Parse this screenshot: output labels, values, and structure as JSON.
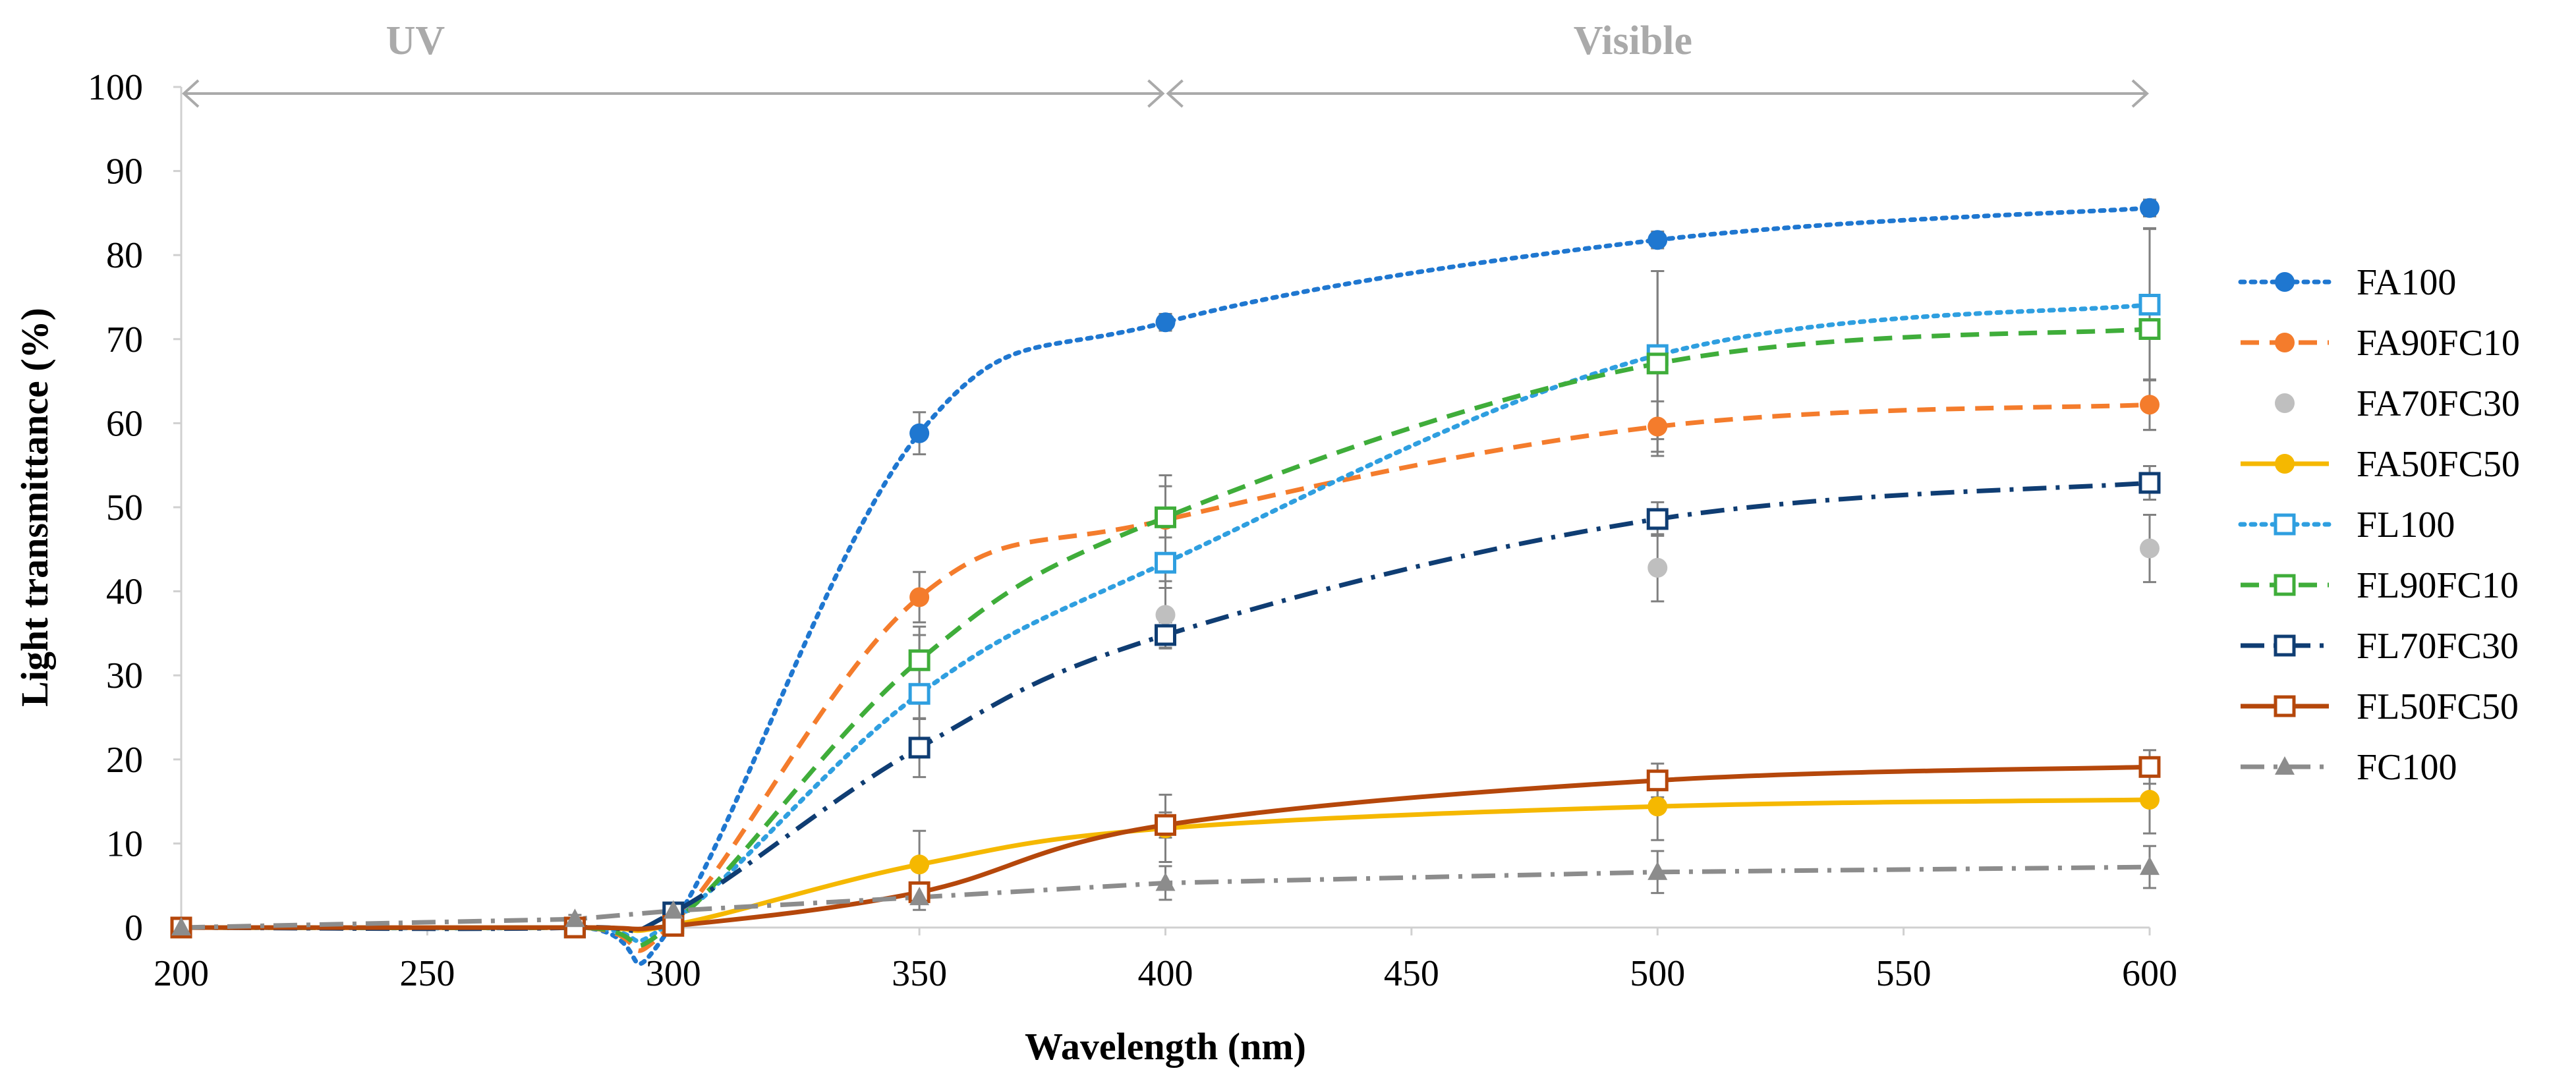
{
  "chart_data": {
    "type": "line",
    "title": "",
    "xlabel": "Wavelength (nm)",
    "ylabel": "Light transmittance (%)",
    "xlim": [
      200,
      600
    ],
    "ylim": [
      0,
      100
    ],
    "xticks": [
      "200",
      "250",
      "300",
      "350",
      "400",
      "450",
      "500",
      "550",
      "600"
    ],
    "yticks": [
      "0",
      "10",
      "20",
      "30",
      "40",
      "50",
      "60",
      "70",
      "80",
      "90",
      "100"
    ],
    "grid": false,
    "legend_position": "right",
    "regions": [
      {
        "label": "UV",
        "from": 200,
        "to": 400
      },
      {
        "label": "Visible",
        "from": 400,
        "to": 600
      }
    ],
    "series": [
      {
        "name": "FA100",
        "color": "#1f77d0",
        "dash": "dotted",
        "marker": "filled-circle",
        "smooth": true,
        "x": [
          200,
          280,
          300,
          350,
          400,
          500,
          600
        ],
        "y": [
          0,
          0,
          0.5,
          58.8,
          72,
          81.8,
          85.6
        ],
        "err": [
          0,
          0,
          0,
          2.5,
          1,
          1,
          1
        ]
      },
      {
        "name": "FA90FC10",
        "color": "#f47c2c",
        "dash": "dashed",
        "marker": "filled-circle",
        "smooth": true,
        "x": [
          200,
          280,
          300,
          350,
          400,
          500,
          600
        ],
        "y": [
          0,
          0,
          0.5,
          39.3,
          48.5,
          59.6,
          62.2
        ],
        "err": [
          0,
          0,
          0,
          3,
          4,
          3,
          3
        ]
      },
      {
        "name": "FA70FC30",
        "color": "#bfbfbf",
        "dash": "none",
        "marker": "filled-circle",
        "smooth": false,
        "x": [
          200,
          280,
          300,
          350,
          400,
          500,
          600
        ],
        "y": [
          0,
          0,
          0.5,
          31.8,
          37.2,
          42.8,
          45.1
        ],
        "err": [
          0,
          0,
          0,
          3,
          4,
          4,
          4
        ]
      },
      {
        "name": "FA50FC50",
        "color": "#f5b800",
        "dash": "solid",
        "marker": "filled-circle",
        "smooth": true,
        "x": [
          200,
          280,
          300,
          350,
          400,
          500,
          600
        ],
        "y": [
          0,
          0,
          0.3,
          7.5,
          11.8,
          14.4,
          15.2
        ],
        "err": [
          0,
          0,
          0,
          4,
          4,
          4,
          4
        ]
      },
      {
        "name": "FL100",
        "color": "#2f9fe0",
        "dash": "dotted",
        "marker": "open-square",
        "smooth": true,
        "x": [
          200,
          280,
          300,
          350,
          400,
          500,
          600
        ],
        "y": [
          0,
          0,
          0.8,
          27.8,
          43.4,
          68.1,
          74.1
        ],
        "err": [
          0,
          0,
          0,
          3,
          3,
          10,
          9
        ]
      },
      {
        "name": "FL90FC10",
        "color": "#3fad3a",
        "dash": "dashed",
        "marker": "open-square",
        "smooth": true,
        "x": [
          200,
          280,
          300,
          350,
          400,
          500,
          600
        ],
        "y": [
          0,
          0,
          0.5,
          31.8,
          48.8,
          67.1,
          71.2
        ],
        "err": [
          0,
          0,
          0,
          4,
          5,
          11,
          12
        ]
      },
      {
        "name": "FL70FC30",
        "color": "#0f3d73",
        "dash": "dash-dot",
        "marker": "open-square",
        "smooth": true,
        "x": [
          200,
          280,
          300,
          350,
          400,
          500,
          600
        ],
        "y": [
          0,
          0,
          1.8,
          21.4,
          34.8,
          48.6,
          52.9
        ],
        "err": [
          0,
          0,
          0,
          3.5,
          1.5,
          2,
          2
        ]
      },
      {
        "name": "FL50FC50",
        "color": "#b5470b",
        "dash": "solid",
        "marker": "open-square",
        "smooth": true,
        "x": [
          200,
          280,
          300,
          350,
          400,
          500,
          600
        ],
        "y": [
          0,
          0,
          0.2,
          4.2,
          12.2,
          17.5,
          19.1
        ],
        "err": [
          0,
          0,
          0,
          1,
          1.5,
          2,
          2
        ]
      },
      {
        "name": "FC100",
        "color": "#8c8c8c",
        "dash": "dash-dot",
        "marker": "filled-triangle",
        "smooth": false,
        "x": [
          200,
          280,
          300,
          350,
          400,
          500,
          600
        ],
        "y": [
          0,
          1,
          2,
          3.6,
          5.3,
          6.6,
          7.2
        ],
        "err": [
          0,
          0.5,
          0.5,
          1.5,
          2,
          2.5,
          2.5
        ]
      }
    ]
  }
}
